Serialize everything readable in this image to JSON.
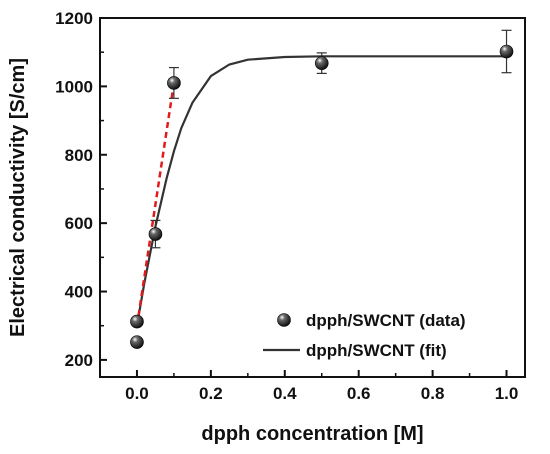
{
  "chart_data": {
    "type": "scatter",
    "title": "",
    "xlabel": "dpph concentration [M]",
    "ylabel": "Electrical conductivity [S/cm]",
    "xlim": [
      -0.1,
      1.05
    ],
    "ylim": [
      150,
      1200
    ],
    "x_ticks": [
      0.0,
      0.2,
      0.4,
      0.6,
      0.8,
      1.0
    ],
    "x_tick_labels": [
      "0.0",
      "0.2",
      "0.4",
      "0.6",
      "0.8",
      "1.0"
    ],
    "y_ticks": [
      200,
      400,
      600,
      800,
      1000,
      1200
    ],
    "y_tick_labels": [
      "200",
      "400",
      "600",
      "800",
      "1000",
      "1200"
    ],
    "grid": false,
    "legend_position": "bottom-right",
    "series": [
      {
        "name": "dpph/SWCNT (data)",
        "kind": "points",
        "x": [
          0.0,
          0.0,
          0.05,
          0.1,
          0.5,
          1.0
        ],
        "y": [
          252,
          312,
          568,
          1010,
          1068,
          1102
        ],
        "y_err": [
          0,
          0,
          40,
          45,
          30,
          62
        ]
      },
      {
        "name": "dpph/SWCNT (fit)",
        "kind": "line",
        "x": [
          0.0,
          0.02,
          0.05,
          0.08,
          0.1,
          0.12,
          0.15,
          0.2,
          0.25,
          0.3,
          0.4,
          0.5,
          0.6,
          0.8,
          1.0
        ],
        "y": [
          300,
          425,
          590,
          730,
          810,
          878,
          952,
          1030,
          1064,
          1078,
          1086,
          1088,
          1088,
          1088,
          1088
        ]
      },
      {
        "kind": "dashed-line",
        "color": "#e01b1b",
        "x": [
          0.0,
          0.1
        ],
        "y": [
          300,
          1010
        ]
      }
    ],
    "colors": {
      "marker": "#111111",
      "fit_line": "#333333",
      "dashed_line": "#e01b1b"
    }
  }
}
